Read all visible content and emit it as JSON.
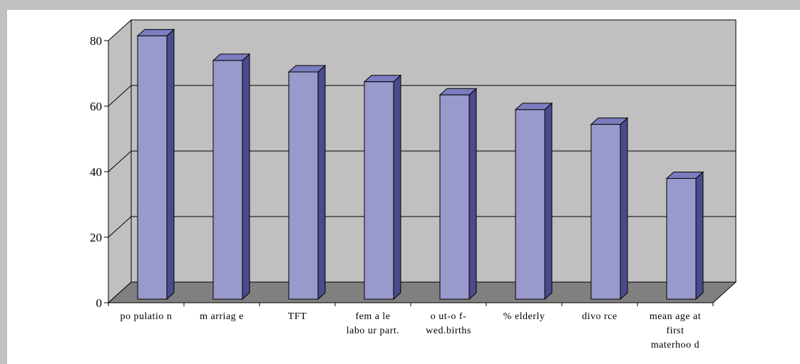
{
  "chart_data": {
    "type": "bar",
    "title": "",
    "xlabel": "",
    "ylabel": "",
    "ylim": [
      0,
      80
    ],
    "yticks": [
      "0",
      "20",
      "40",
      "60",
      "80"
    ],
    "grid": true,
    "legend": "none",
    "style": "3d",
    "categories": [
      [
        "po pulatio n"
      ],
      [
        "m arriag e"
      ],
      [
        "TFT"
      ],
      [
        "fem a le",
        "labo ur part."
      ],
      [
        "o ut-o f-",
        "wed.births"
      ],
      [
        "% elderly"
      ],
      [
        "divo rce"
      ],
      [
        "mean age at",
        "first",
        "materhoo d"
      ]
    ],
    "values": [
      81,
      73.5,
      70,
      67,
      63,
      58.5,
      54,
      37.5
    ]
  },
  "colors": {
    "bar_front": "#9999cc",
    "bar_top": "#7c7cc0",
    "bar_side": "#4a4a8c",
    "wall": "#c0c0c0",
    "floor": "#808080",
    "outer_background": "#c0c0c0",
    "plot_background": "#ffffff"
  }
}
